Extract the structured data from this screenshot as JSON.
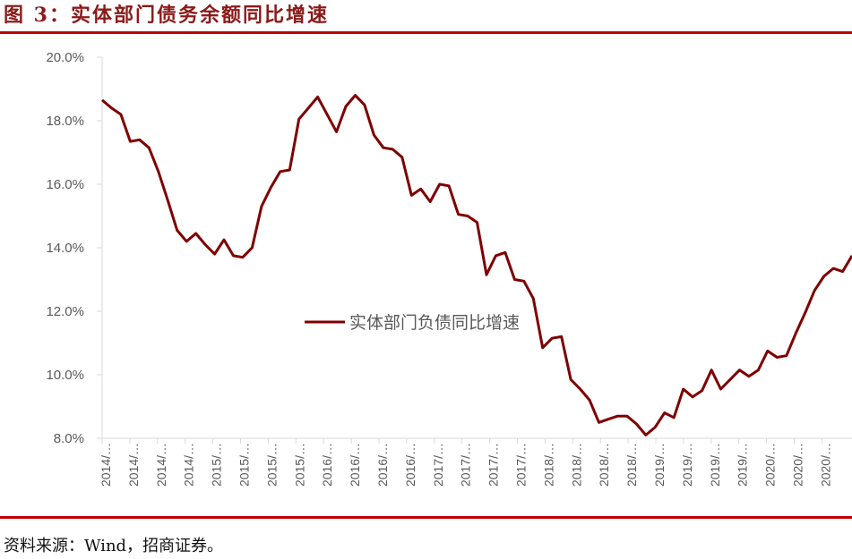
{
  "figure": {
    "title": "图 3：实体部门债务余额同比增速",
    "source": "资料来源：Wind，招商证券。",
    "accent_color": "#c00000",
    "title_color": "#8b1a1a",
    "line_color": "#7f0000"
  },
  "chart_data": {
    "type": "line",
    "title": "实体部门债务余额同比增速",
    "xlabel": "",
    "ylabel": "",
    "ylim": [
      8.0,
      20.0
    ],
    "y_ticks": [
      "20.0%",
      "18.0%",
      "16.0%",
      "14.0%",
      "12.0%",
      "10.0%",
      "8.0%"
    ],
    "x_tick_labels": [
      "2014/…",
      "2014/…",
      "2014/…",
      "2014/…",
      "2015/…",
      "2015/…",
      "2015/…",
      "2015/…",
      "2016/…",
      "2016/…",
      "2016/…",
      "2016/…",
      "2017/…",
      "2017/…",
      "2017/…",
      "2017/…",
      "2018/…",
      "2018/…",
      "2018/…",
      "2018/…",
      "2019/…",
      "2019/…",
      "2019/…",
      "2019/…",
      "2020/…",
      "2020/…",
      "2020/…"
    ],
    "grid": false,
    "legend_position": "inside-center",
    "series": [
      {
        "name": "实体部门负债同比增速",
        "color": "#7f0000",
        "values": [
          18.65,
          18.4,
          18.2,
          17.35,
          17.4,
          17.15,
          16.4,
          15.5,
          14.55,
          14.2,
          14.45,
          14.1,
          13.8,
          14.25,
          13.75,
          13.7,
          14.0,
          15.3,
          15.9,
          16.4,
          16.45,
          18.05,
          18.4,
          18.75,
          18.2,
          17.65,
          18.45,
          18.8,
          18.5,
          17.55,
          17.15,
          17.1,
          16.85,
          15.65,
          15.85,
          15.45,
          16.0,
          15.95,
          15.05,
          15.0,
          14.8,
          13.15,
          13.75,
          13.85,
          13.0,
          12.95,
          12.4,
          10.85,
          11.15,
          11.2,
          9.85,
          9.55,
          9.2,
          8.5,
          8.6,
          8.7,
          8.7,
          8.45,
          8.1,
          8.35,
          8.8,
          8.65,
          9.55,
          9.3,
          9.5,
          10.15,
          9.55,
          9.85,
          10.15,
          9.95,
          10.15,
          10.75,
          10.55,
          10.6,
          11.3,
          11.95,
          12.65,
          13.1,
          13.35,
          13.25,
          13.75
        ]
      }
    ]
  }
}
